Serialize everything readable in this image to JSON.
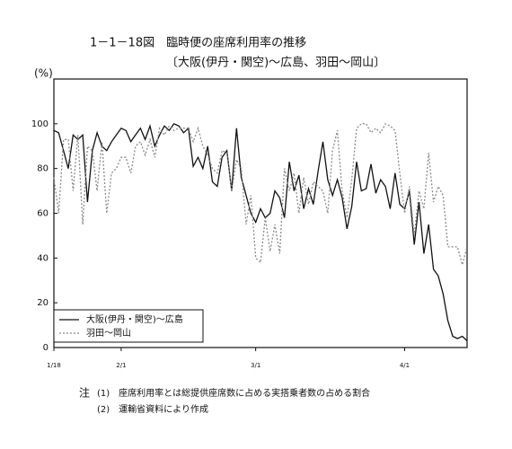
{
  "chart_data": {
    "type": "line",
    "title": "1－1－18図　臨時便の座席利用率の推移",
    "subtitle": "〔大阪(伊丹・関空)〜広島、羽田〜岡山〕",
    "y_unit": "(%)",
    "x": [
      0,
      1,
      2,
      3,
      4,
      5,
      6,
      7,
      8,
      9,
      10,
      11,
      12,
      13,
      14,
      15,
      16,
      17,
      18,
      19,
      20,
      21,
      22,
      23,
      24,
      25,
      26,
      27,
      28,
      29,
      30,
      31,
      32,
      33,
      34,
      35,
      36,
      37,
      38,
      39,
      40,
      41,
      42,
      43,
      44,
      45,
      46,
      47,
      48,
      49,
      50,
      51,
      52,
      53,
      54,
      55,
      56,
      57,
      58,
      59,
      60,
      61,
      62,
      63,
      64,
      65,
      66,
      67,
      68,
      69,
      70,
      71,
      72,
      73,
      74,
      75,
      76,
      77,
      78,
      79,
      80,
      81,
      82,
      83,
      84,
      85,
      86
    ],
    "xlim": [
      0,
      86
    ],
    "xticks": [
      {
        "value": 0,
        "label": "1/18"
      },
      {
        "value": 14,
        "label": "2/1"
      },
      {
        "value": 42,
        "label": "3/1"
      },
      {
        "value": 73,
        "label": "4/1"
      }
    ],
    "ylim": [
      0,
      120
    ],
    "yticks": [
      0,
      20,
      40,
      60,
      80,
      100
    ],
    "grid": false,
    "legend": "lower-left",
    "series": [
      {
        "name": "大阪(伊丹・関空)〜広島",
        "color": "#111111",
        "dash": "none",
        "values": [
          97,
          96,
          88,
          80,
          95,
          93,
          95,
          65,
          88,
          96,
          90,
          88,
          92,
          95,
          98,
          97,
          92,
          95,
          98,
          93,
          99,
          90,
          95,
          99,
          97,
          100,
          99,
          96,
          98,
          81,
          85,
          80,
          90,
          74,
          72,
          85,
          88,
          70,
          98,
          76,
          68,
          60,
          56,
          62,
          58,
          60,
          70,
          67,
          58,
          83,
          70,
          77,
          62,
          71,
          64,
          79,
          92,
          75,
          68,
          75,
          67,
          53,
          63,
          83,
          70,
          71,
          82,
          69,
          75,
          72,
          62,
          78,
          64,
          62,
          70,
          46,
          65,
          42,
          55,
          35,
          32,
          24,
          12,
          5,
          4,
          5,
          3
        ]
      },
      {
        "name": "羽田〜岡山",
        "color": "#8a8a8a",
        "dash": "2,2",
        "values": [
          76,
          60,
          93,
          93,
          70,
          95,
          55,
          90,
          88,
          70,
          92,
          60,
          78,
          80,
          85,
          85,
          78,
          90,
          92,
          86,
          93,
          85,
          98,
          95,
          99,
          97,
          98,
          98,
          98,
          92,
          98,
          90,
          86,
          80,
          78,
          88,
          87,
          70,
          84,
          80,
          55,
          68,
          40,
          38,
          58,
          43,
          55,
          42,
          80,
          70,
          78,
          60,
          76,
          64,
          74,
          72,
          70,
          60,
          88,
          97,
          70,
          58,
          75,
          98,
          100,
          100,
          96,
          98,
          96,
          100,
          99,
          97,
          78,
          60,
          72,
          50,
          70,
          62,
          87,
          65,
          72,
          68,
          45,
          45,
          45,
          37,
          45
        ]
      }
    ],
    "note_prefix": "注",
    "notes": [
      "(1)　座席利用率とは総提供座席数に占める実搭乗者数の占める割合",
      "(2)　運輸省資料により作成"
    ]
  }
}
